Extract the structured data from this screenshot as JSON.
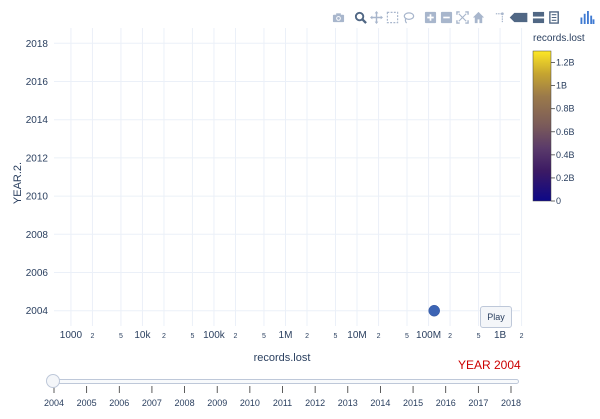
{
  "modebar": {
    "icons": [
      "camera-icon",
      "zoom-icon",
      "pan-icon",
      "box-select-icon",
      "lasso-select-icon",
      "zoom-in-icon",
      "zoom-out-icon",
      "autoscale-icon",
      "reset-axes-icon",
      "toggle-spikelines-icon",
      "hover-closest-icon",
      "hover-compare-icon",
      "plotly-logo-icon"
    ]
  },
  "chart_data": {
    "type": "scatter",
    "xlabel": "records.lost",
    "ylabel": "YEAR.2.",
    "x_scale": "log",
    "xlim": [
      580,
      1900000000
    ],
    "ylim": [
      2003.2,
      2018.8
    ],
    "x_ticks": [
      "1000",
      "2",
      "5",
      "10k",
      "2",
      "5",
      "100k",
      "2",
      "5",
      "1M",
      "2",
      "5",
      "10M",
      "2",
      "5",
      "100M",
      "2",
      "5",
      "1B",
      "2"
    ],
    "y_ticks": [
      2004,
      2006,
      2008,
      2010,
      2012,
      2014,
      2016,
      2018
    ],
    "grid": true,
    "points": [
      {
        "x": 120000000,
        "y": 2004,
        "records_lost": 120000000
      }
    ],
    "point_color": "#3c64b4",
    "colorbar": {
      "title": "records.lost",
      "ticks": [
        "0",
        "0.2B",
        "0.4B",
        "0.6B",
        "0.8B",
        "1B",
        "1.2B"
      ],
      "range": [
        0,
        1300000000
      ],
      "colors": [
        "#440154",
        "#3b528b",
        "#21918c",
        "#5ec962",
        "#fde725"
      ]
    },
    "colorbar_gradient": [
      "#0d0887",
      "#3c1a64",
      "#5a3a6a",
      "#7a5a5a",
      "#9b7a4a",
      "#c6a530",
      "#fde725"
    ],
    "animation": {
      "current_frame_label": "YEAR 2004",
      "play_label": "Play",
      "slider_steps": [
        "2004",
        "2005",
        "2006",
        "2007",
        "2008",
        "2009",
        "2010",
        "2011",
        "2012",
        "2013",
        "2014",
        "2015",
        "2016",
        "2017",
        "2018"
      ],
      "current_step": "2004"
    }
  }
}
